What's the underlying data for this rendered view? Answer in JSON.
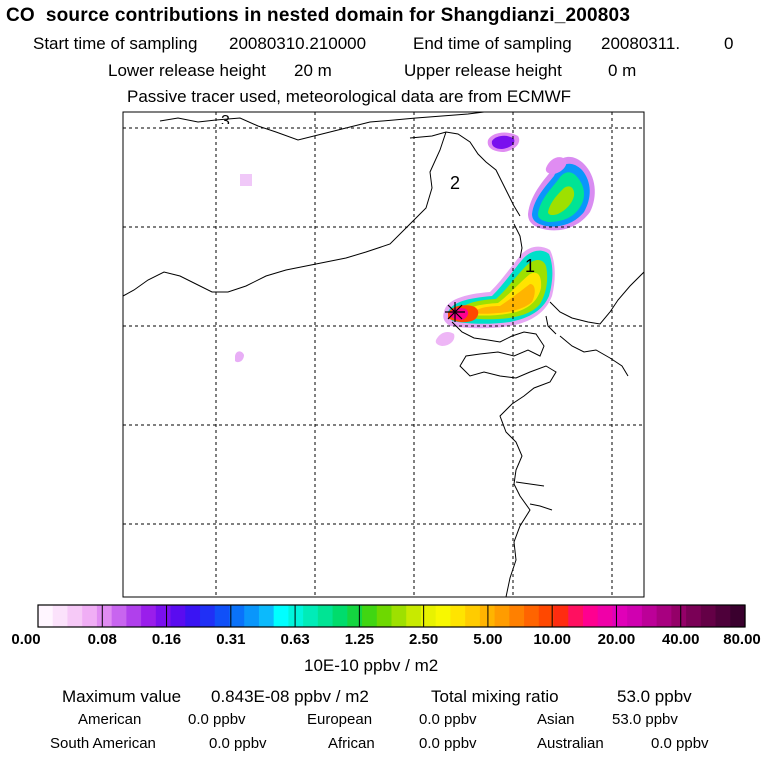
{
  "header": {
    "title": "CO  source contributions in nested domain for Shangdianzi_200803",
    "start_label": "Start time of sampling",
    "start_value": "20080310.210000",
    "end_label": "End time of sampling",
    "end_value": "20080311.",
    "end_suffix": "0",
    "lower_label": "Lower release height",
    "lower_value": "20 m",
    "upper_label": "Upper release height",
    "upper_value": "0 m",
    "note": "Passive tracer used, meteorological data are from ECMWF"
  },
  "map": {
    "labels": [
      "1",
      "2",
      "3"
    ],
    "receptor_marker": "star-cross",
    "border_color": "#000000",
    "gridline_style": "dashed"
  },
  "colorbar": {
    "tick_labels": [
      "0.00",
      "0.08",
      "0.16",
      "0.31",
      "0.63",
      "1.25",
      "2.50",
      "5.00",
      "10.00",
      "20.00",
      "40.00",
      "80.00"
    ],
    "unit": "10E-10 ppbv / m2",
    "colors": [
      "#fff6ff",
      "#fbe2fb",
      "#f6c9f7",
      "#f0aef5",
      "#e08cf2",
      "#c865ef",
      "#b040ec",
      "#9a1eeb",
      "#7a10ee",
      "#5a0cf0",
      "#3a14f3",
      "#2030f6",
      "#1050f8",
      "#0a72fa",
      "#0a96fb",
      "#0cbafc",
      "#00ffff",
      "#00f5dc",
      "#00ecb8",
      "#00e494",
      "#00dc6c",
      "#14d640",
      "#40d612",
      "#6ed800",
      "#9ee000",
      "#c8ea00",
      "#e8f200",
      "#f8f800",
      "#ffe400",
      "#ffcc00",
      "#ffb400",
      "#ff9c00",
      "#ff8000",
      "#ff6400",
      "#ff4800",
      "#ff2c10",
      "#ff1060",
      "#ff0090",
      "#f000a8",
      "#e000b8",
      "#d000b0",
      "#bc0098",
      "#a80080",
      "#940068",
      "#7a0056",
      "#640046",
      "#4e003a",
      "#3a002e"
    ]
  },
  "summary": {
    "max_label": "Maximum value",
    "max_value": "0.843E-08 ppbv / m2",
    "total_label": "Total mixing ratio",
    "total_value": "53.0 ppbv",
    "regions": [
      {
        "name": "American",
        "value": "0.0 ppbv"
      },
      {
        "name": "European",
        "value": "0.0 ppbv"
      },
      {
        "name": "Asian",
        "value": "53.0 ppbv"
      },
      {
        "name": "South American",
        "value": "0.0 ppbv"
      },
      {
        "name": "African",
        "value": "0.0 ppbv"
      },
      {
        "name": "Australian",
        "value": "0.0 ppbv"
      }
    ]
  }
}
